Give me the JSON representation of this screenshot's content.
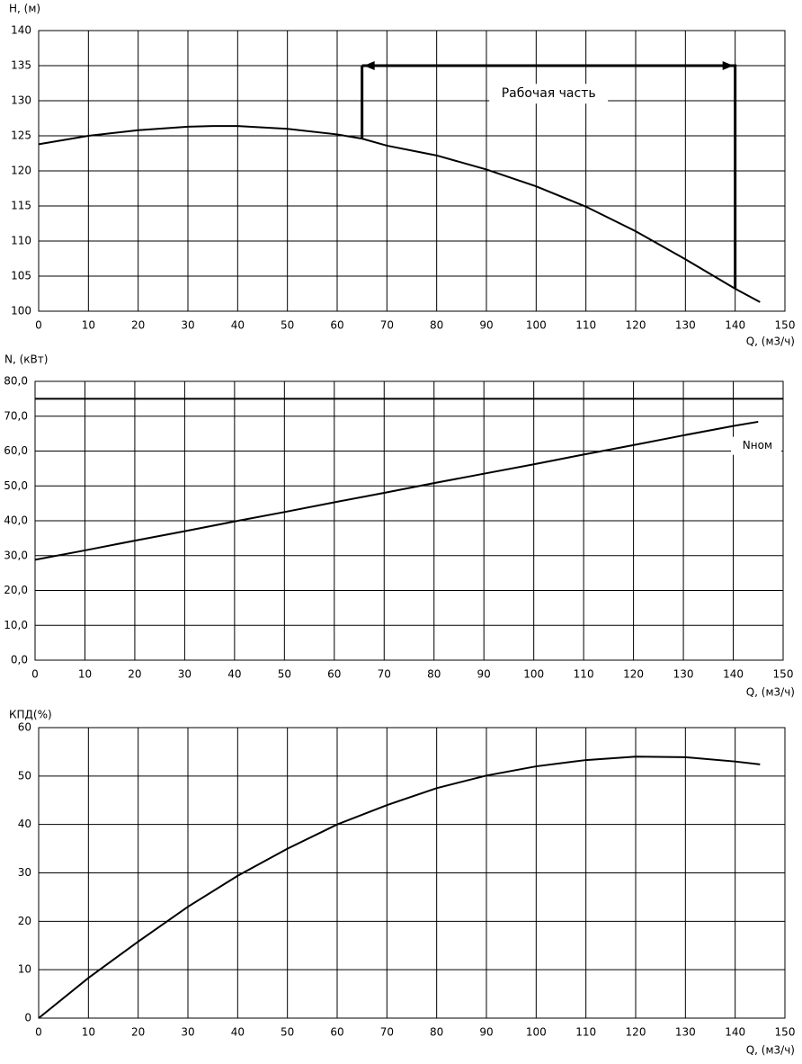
{
  "chart_data": [
    {
      "type": "line",
      "ylabel": "H, (м)",
      "xlabel": "Q, (м3/ч)",
      "x": [
        0,
        10,
        20,
        30,
        35,
        40,
        50,
        60,
        65,
        70,
        80,
        90,
        100,
        110,
        120,
        130,
        140,
        145
      ],
      "values": [
        123.8,
        125.0,
        125.8,
        126.3,
        126.4,
        126.4,
        126.0,
        125.2,
        124.6,
        123.6,
        122.2,
        120.2,
        117.8,
        114.9,
        111.4,
        107.4,
        103.2,
        101.3
      ],
      "color": "#000000",
      "xlim": [
        0,
        150
      ],
      "xticks": [
        0,
        10,
        20,
        30,
        40,
        50,
        60,
        70,
        80,
        90,
        100,
        110,
        120,
        130,
        140,
        150
      ],
      "ylim": [
        100,
        140
      ],
      "yticks": [
        100,
        105,
        110,
        115,
        120,
        125,
        130,
        135,
        140
      ],
      "grid": true,
      "bracket": {
        "x": [
          65,
          140
        ],
        "y": 135,
        "label": "Рабочая часть"
      }
    },
    {
      "type": "line",
      "ylabel": "N, (кВт)",
      "xlabel": "Q, (м3/ч)",
      "x": [
        0,
        10,
        20,
        30,
        40,
        50,
        60,
        70,
        80,
        90,
        100,
        110,
        120,
        130,
        140,
        145
      ],
      "values": [
        28.8,
        31.5,
        34.3,
        37.0,
        39.8,
        42.5,
        45.3,
        48.0,
        50.8,
        53.5,
        56.2,
        59.0,
        61.7,
        64.5,
        67.2,
        68.4
      ],
      "color": "#000000",
      "xlim": [
        0,
        150
      ],
      "xticks": [
        0,
        10,
        20,
        30,
        40,
        50,
        60,
        70,
        80,
        90,
        100,
        110,
        120,
        130,
        140,
        150
      ],
      "ylim": [
        0,
        80
      ],
      "yticks": [
        {
          "value": 0,
          "label": "0,0"
        },
        {
          "value": 10,
          "label": "10,0"
        },
        {
          "value": 20,
          "label": "20,0"
        },
        {
          "value": 30,
          "label": "30,0"
        },
        {
          "value": 40,
          "label": "40,0"
        },
        {
          "value": 50,
          "label": "50,0"
        },
        {
          "value": 60,
          "label": "60,0"
        },
        {
          "value": 70,
          "label": "70,0"
        },
        {
          "value": 80,
          "label": "80,0"
        }
      ],
      "grid": true,
      "hline": {
        "value": 75,
        "label": "Nном"
      }
    },
    {
      "type": "line",
      "ylabel": "КПД(%)",
      "xlabel": "Q, (м3/ч)",
      "x": [
        0,
        10,
        20,
        30,
        40,
        50,
        60,
        70,
        80,
        90,
        100,
        110,
        120,
        130,
        140,
        145
      ],
      "values": [
        0,
        8.3,
        15.8,
        23.0,
        29.4,
        35.0,
        40.0,
        44.0,
        47.5,
        50.1,
        52.0,
        53.3,
        54.0,
        53.9,
        53.0,
        52.4
      ],
      "color": "#000000",
      "xlim": [
        0,
        150
      ],
      "xticks": [
        0,
        10,
        20,
        30,
        40,
        50,
        60,
        70,
        80,
        90,
        100,
        110,
        120,
        130,
        140,
        150
      ],
      "ylim": [
        0,
        60
      ],
      "yticks": [
        0,
        10,
        20,
        30,
        40,
        50,
        60
      ],
      "grid": true
    }
  ]
}
